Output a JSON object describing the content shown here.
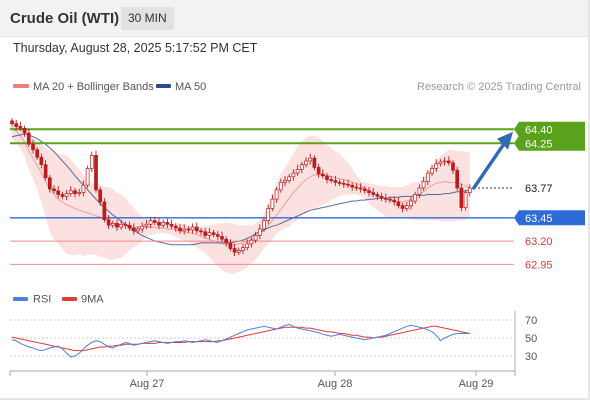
{
  "header": {
    "title": "Crude Oil (WTI)",
    "timeframe": "30 MIN",
    "datetime": "Thursday, August 28, 2025 5:17:52 PM CET"
  },
  "credit": "Research © 2025 Trading Central",
  "colors": {
    "bollinger": "#f08080",
    "ma50": "#2e4a8f",
    "support": "#2e6bd6",
    "resistance": "#5aa21c",
    "pivot": "#333333",
    "target_lines": "#f08a8a",
    "rsi": "#4f7fe0",
    "rsi_ma": "#e33a3a",
    "candle": "#b91d1d",
    "forecast_arrow": "#2f6bb5"
  },
  "chart_data": [
    {
      "type": "candlestick",
      "legend": [
        {
          "label": "MA 20 + Bollinger Bands",
          "color": "#f08080"
        },
        {
          "label": "MA 50",
          "color": "#2e4a8f"
        }
      ],
      "x_tick_labels": [
        "Aug 27",
        "Aug 28",
        "Aug 29"
      ],
      "ylim": [
        62.75,
        64.65
      ],
      "levels": [
        {
          "value": 64.4,
          "label": "64.40",
          "kind": "resistance"
        },
        {
          "value": 64.25,
          "label": "64.25",
          "kind": "resistance"
        },
        {
          "value": 63.77,
          "label": "63.77",
          "kind": "pivot"
        },
        {
          "value": 63.45,
          "label": "63.45",
          "kind": "support"
        },
        {
          "value": 63.2,
          "label": "63.20",
          "kind": "target"
        },
        {
          "value": 62.95,
          "label": "62.95",
          "kind": "target"
        }
      ],
      "closes": [
        64.46,
        64.43,
        64.41,
        64.36,
        64.24,
        64.18,
        64.1,
        64.02,
        63.88,
        63.76,
        63.74,
        63.7,
        63.68,
        63.71,
        63.74,
        63.71,
        63.72,
        63.8,
        63.98,
        64.12,
        63.75,
        63.62,
        63.43,
        63.37,
        63.39,
        63.35,
        63.38,
        63.37,
        63.34,
        63.31,
        63.33,
        63.36,
        63.38,
        63.42,
        63.4,
        63.37,
        63.4,
        63.38,
        63.36,
        63.34,
        63.31,
        63.33,
        63.32,
        63.35,
        63.31,
        63.3,
        63.26,
        63.29,
        63.27,
        63.25,
        63.22,
        63.18,
        63.12,
        63.08,
        63.1,
        63.13,
        63.17,
        63.21,
        63.26,
        63.33,
        63.42,
        63.55,
        63.65,
        63.75,
        63.83,
        63.85,
        63.89,
        63.93,
        63.97,
        64.02,
        64.06,
        64.09,
        63.99,
        63.92,
        63.9,
        63.86,
        63.85,
        63.83,
        63.82,
        63.81,
        63.8,
        63.78,
        63.77,
        63.76,
        63.74,
        63.72,
        63.7,
        63.68,
        63.66,
        63.65,
        63.64,
        63.62,
        63.58,
        63.55,
        63.58,
        63.63,
        63.7,
        63.77,
        63.84,
        63.93,
        63.98,
        64.03,
        64.05,
        64.06,
        64.04,
        63.96,
        63.77,
        63.56,
        63.72,
        63.77
      ],
      "bollinger_upper": [
        64.51,
        64.48,
        64.43,
        64.39,
        64.35,
        64.31,
        64.27,
        64.24,
        64.2,
        64.18,
        64.16,
        64.14,
        64.13,
        64.12,
        64.08,
        64.02,
        63.97,
        63.91,
        63.86,
        63.82,
        63.81,
        63.81,
        63.78,
        63.78,
        63.76,
        63.72,
        63.7,
        63.67,
        63.6,
        63.56,
        63.5,
        63.46,
        63.42,
        63.42,
        63.41,
        63.42,
        63.41,
        63.4,
        63.39,
        63.39,
        63.39,
        63.38,
        63.37,
        63.37,
        63.35,
        63.36,
        63.36,
        63.37,
        63.37,
        63.39,
        63.39,
        63.4,
        63.39,
        63.38,
        63.37,
        63.37,
        63.37,
        63.37,
        63.39,
        63.43,
        63.5,
        63.6,
        63.7,
        63.83,
        63.92,
        63.99,
        64.06,
        64.14,
        64.21,
        64.27,
        64.31,
        64.33,
        64.33,
        64.31,
        64.28,
        64.23,
        64.2,
        64.16,
        64.14,
        64.09,
        64.04,
        63.98,
        63.91,
        63.85,
        63.83,
        63.82,
        63.81,
        63.8,
        63.79,
        63.79,
        63.78,
        63.78,
        63.78,
        63.78,
        63.8,
        63.82,
        63.83,
        63.84,
        63.89,
        63.94,
        64.0,
        64.06,
        64.11,
        64.15,
        64.18,
        64.18,
        64.16,
        64.17,
        64.16,
        64.15
      ],
      "bollinger_lower": [
        64.3,
        64.25,
        64.2,
        64.11,
        63.97,
        63.87,
        63.76,
        63.61,
        63.46,
        63.3,
        63.22,
        63.17,
        63.12,
        63.06,
        63.05,
        63.05,
        63.06,
        63.04,
        63.05,
        63.06,
        63.05,
        63.04,
        63.02,
        63.0,
        63.0,
        63.01,
        63.02,
        63.06,
        63.1,
        63.13,
        63.16,
        63.2,
        63.25,
        63.27,
        63.27,
        63.29,
        63.29,
        63.28,
        63.27,
        63.24,
        63.22,
        63.2,
        63.19,
        63.16,
        63.13,
        63.1,
        63.07,
        63.02,
        62.98,
        62.93,
        62.89,
        62.86,
        62.85,
        62.85,
        62.87,
        62.89,
        62.92,
        62.96,
        63.0,
        63.06,
        63.12,
        63.17,
        63.22,
        63.28,
        63.31,
        63.34,
        63.36,
        63.4,
        63.43,
        63.47,
        63.5,
        63.54,
        63.55,
        63.57,
        63.59,
        63.61,
        63.64,
        63.66,
        63.68,
        63.7,
        63.7,
        63.7,
        63.7,
        63.69,
        63.65,
        63.6,
        63.56,
        63.53,
        63.5,
        63.46,
        63.45,
        63.45,
        63.46,
        63.46,
        63.45,
        63.43,
        63.43,
        63.43,
        63.43,
        63.43,
        63.43,
        63.42,
        63.42,
        63.41,
        63.41,
        63.41,
        63.42,
        63.42,
        63.43,
        63.45
      ],
      "ma50": [
        64.32,
        64.33,
        64.34,
        64.35,
        64.34,
        64.32,
        64.3,
        64.27,
        64.24,
        64.2,
        64.16,
        64.11,
        64.06,
        64.01,
        63.96,
        63.9,
        63.85,
        63.8,
        63.75,
        63.7,
        63.65,
        63.6,
        63.56,
        63.52,
        63.48,
        63.45,
        63.41,
        63.38,
        63.34,
        63.31,
        63.29,
        63.26,
        63.24,
        63.22,
        63.2,
        63.19,
        63.18,
        63.17,
        63.16,
        63.16,
        63.16,
        63.16,
        63.16,
        63.16,
        63.17,
        63.18,
        63.18,
        63.18,
        63.18,
        63.18,
        63.18,
        63.18,
        63.18,
        63.19,
        63.2,
        63.21,
        63.23,
        63.25,
        63.28,
        63.3,
        63.32,
        63.34,
        63.36,
        63.37,
        63.39,
        63.41,
        63.43,
        63.45,
        63.47,
        63.49,
        63.51,
        63.53,
        63.54,
        63.55,
        63.56,
        63.57,
        63.58,
        63.59,
        63.6,
        63.61,
        63.62,
        63.63,
        63.63,
        63.64,
        63.64,
        63.65,
        63.65,
        63.66,
        63.66,
        63.66,
        63.67,
        63.67,
        63.67,
        63.68,
        63.68,
        63.68,
        63.69,
        63.69,
        63.69,
        63.7,
        63.7,
        63.7,
        63.7,
        63.71,
        63.71,
        63.72,
        63.73,
        63.73,
        63.74,
        63.74
      ],
      "ma20": [
        64.42,
        64.38,
        64.33,
        64.26,
        64.17,
        64.09,
        64.01,
        63.93,
        63.84,
        63.76,
        63.7,
        63.65,
        63.62,
        63.59,
        63.57,
        63.55,
        63.53,
        63.52,
        63.5,
        63.49,
        63.47,
        63.46,
        63.43,
        63.41,
        63.39,
        63.38,
        63.37,
        63.37,
        63.36,
        63.35,
        63.35,
        63.35,
        63.35,
        63.35,
        63.35,
        63.34,
        63.34,
        63.33,
        63.33,
        63.32,
        63.31,
        63.3,
        63.29,
        63.28,
        63.27,
        63.25,
        63.23,
        63.22,
        63.2,
        63.19,
        63.17,
        63.16,
        63.16,
        63.16,
        63.17,
        63.18,
        63.2,
        63.22,
        63.25,
        63.28,
        63.32,
        63.37,
        63.42,
        63.48,
        63.54,
        63.6,
        63.66,
        63.72,
        63.77,
        63.82,
        63.86,
        63.89,
        63.91,
        63.91,
        63.91,
        63.9,
        63.89,
        63.88,
        63.87,
        63.86,
        63.85,
        63.83,
        63.82,
        63.8,
        63.77,
        63.74,
        63.72,
        63.69,
        63.67,
        63.65,
        63.64,
        63.63,
        63.62,
        63.62,
        63.63,
        63.65,
        63.67,
        63.7,
        63.73,
        63.77,
        63.8,
        63.82,
        63.83,
        63.84,
        63.83,
        63.83,
        63.82,
        63.81,
        63.79,
        63.77
      ],
      "forecast": {
        "from": 63.77,
        "to": 64.33
      }
    },
    {
      "type": "line",
      "legend": [
        {
          "label": "RSI",
          "color": "#4f7fe0"
        },
        {
          "label": "9MA",
          "color": "#e33a3a"
        }
      ],
      "y_tick_labels": [
        "70",
        "50",
        "30"
      ],
      "ylim": [
        20,
        80
      ],
      "series": [
        {
          "name": "RSI",
          "values": [
            48,
            47,
            44,
            42,
            40,
            39,
            37,
            36,
            37,
            39,
            40,
            41,
            38,
            33,
            29,
            30,
            33,
            38,
            42,
            45,
            47,
            46,
            43,
            40,
            39,
            41,
            43,
            45,
            44,
            42,
            43,
            44,
            45,
            46,
            47,
            46,
            45,
            44,
            45,
            46,
            46,
            47,
            46,
            45,
            46,
            47,
            48,
            47,
            46,
            45,
            47,
            49,
            51,
            53,
            55,
            57,
            59,
            60,
            61,
            62,
            63,
            62,
            61,
            60,
            62,
            64,
            65,
            63,
            61,
            60,
            59,
            58,
            57,
            56,
            54,
            53,
            52,
            53,
            54,
            53,
            52,
            51,
            50,
            49,
            48,
            49,
            50,
            51,
            52,
            53,
            55,
            57,
            59,
            61,
            63,
            64,
            63,
            62,
            61,
            59,
            57,
            53,
            47,
            50,
            52,
            54,
            55,
            55,
            55,
            55
          ]
        },
        {
          "name": "9MA",
          "values": [
            51,
            50,
            49,
            48,
            47,
            46,
            45,
            44,
            43,
            42,
            41,
            40,
            39,
            38,
            37,
            36,
            36,
            36,
            37,
            38,
            39,
            40,
            40,
            41,
            41,
            42,
            42,
            43,
            43,
            43,
            43,
            44,
            44,
            44,
            44,
            45,
            45,
            45,
            45,
            45,
            45,
            45,
            46,
            46,
            46,
            46,
            46,
            46,
            46,
            47,
            47,
            48,
            49,
            50,
            51,
            52,
            53,
            54,
            55,
            56,
            57,
            58,
            59,
            60,
            61,
            62,
            62,
            62,
            62,
            62,
            61,
            61,
            60,
            59,
            58,
            57,
            57,
            56,
            55,
            55,
            54,
            53,
            53,
            52,
            51,
            51,
            50,
            51,
            51,
            52,
            53,
            54,
            55,
            56,
            57,
            58,
            59,
            60,
            61,
            62,
            63,
            63,
            62,
            61,
            60,
            59,
            58,
            57,
            56,
            55
          ]
        }
      ]
    }
  ]
}
